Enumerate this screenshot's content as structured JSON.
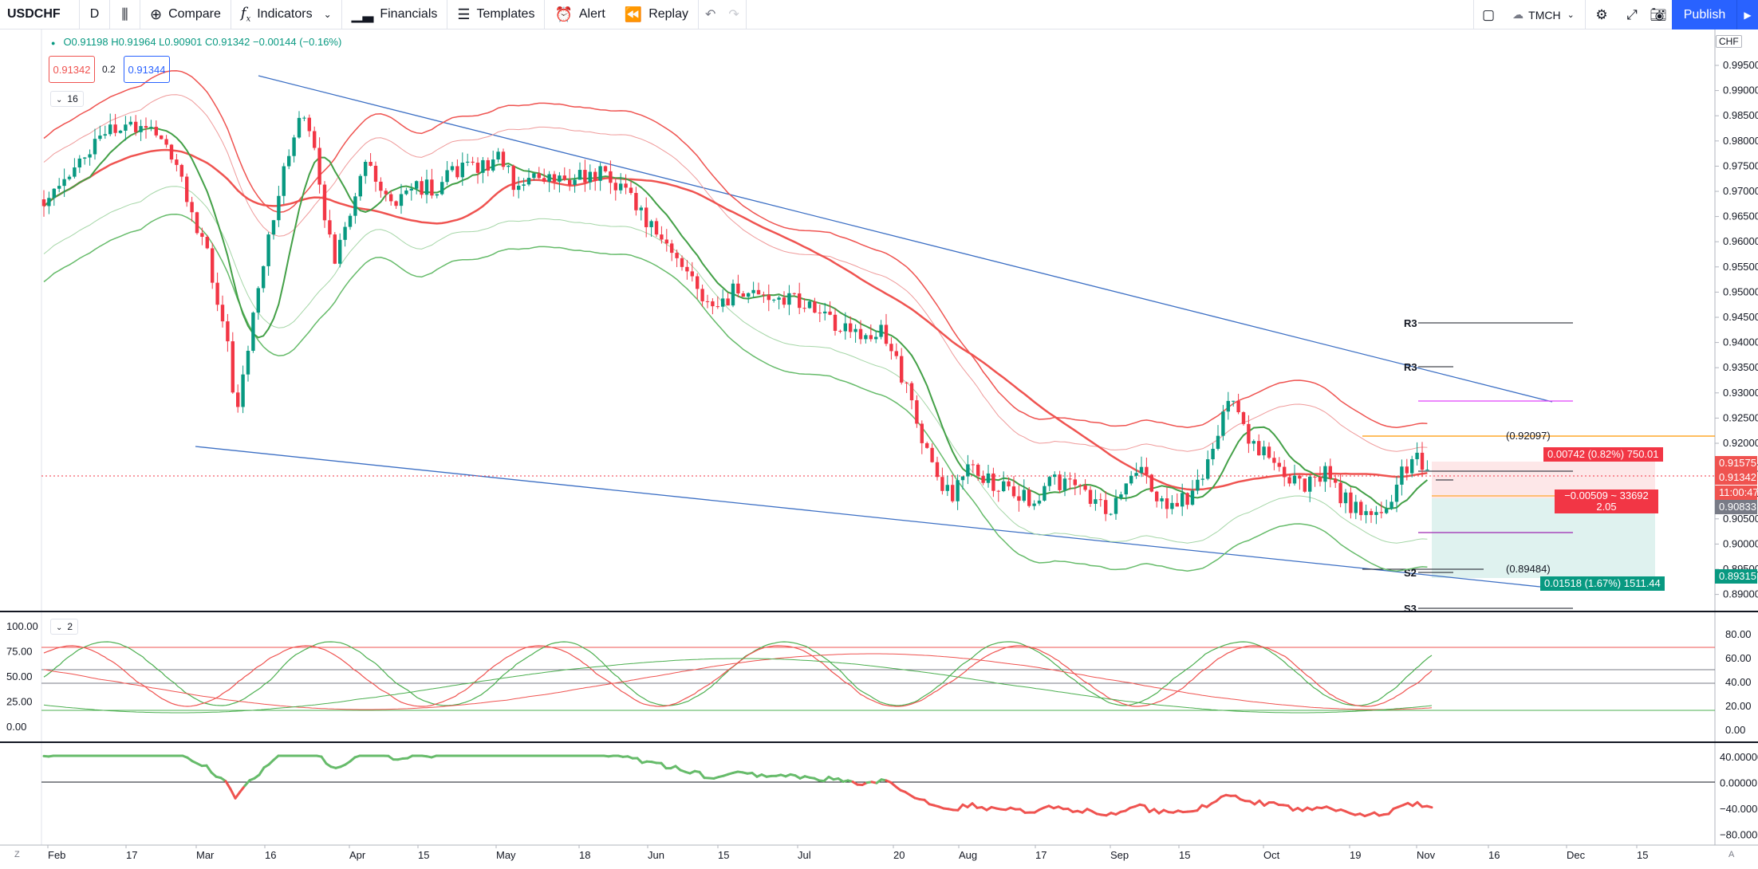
{
  "toolbar": {
    "symbol": "USDCHF",
    "interval": "D",
    "compare": "Compare",
    "indicators": "Indicators",
    "financials": "Financials",
    "templates": "Templates",
    "alert": "Alert",
    "replay": "Replay",
    "layout_name": "TMCH",
    "publish": "Publish"
  },
  "legend": {
    "ohlc": "O0.91198 H0.91964 L0.90901 C0.91342 −0.00144 (−0.16%)",
    "sell_price": "0.91342",
    "spread": "0.2",
    "buy_price": "0.91344",
    "indicator_count": "16",
    "stoch_count": "2"
  },
  "price_scale": {
    "currency": "CHF",
    "ticks": [
      "0.99500",
      "0.99000",
      "0.98500",
      "0.98000",
      "0.97500",
      "0.97000",
      "0.96500",
      "0.96000",
      "0.95500",
      "0.95000",
      "0.94500",
      "0.94000",
      "0.93500",
      "0.93000",
      "0.92500",
      "0.92000",
      "0.91500",
      "0.91000",
      "0.90500",
      "0.90000",
      "0.89500",
      "0.89000"
    ],
    "tags": [
      {
        "text": "0.91575",
        "color": "#ef5350"
      },
      {
        "text": "0.91342",
        "color": "#ef5350"
      },
      {
        "text": "11:00:47",
        "color": "#ef5350"
      },
      {
        "text": "0.90833",
        "color": "#787b86"
      },
      {
        "text": "0.89315",
        "color": "#089981"
      }
    ]
  },
  "stoch_scale": {
    "ticks": [
      "80.00",
      "60.00",
      "40.00",
      "20.00",
      "0.00"
    ]
  },
  "stoch_left_ticks": [
    "100.00",
    "75.00",
    "50.00",
    "25.00",
    "0.00"
  ],
  "osc_scale": {
    "ticks": [
      "40.00000",
      "0.00000",
      "−40.00000",
      "−80.00000"
    ]
  },
  "time_scale": {
    "ticks": [
      "Feb",
      "17",
      "Mar",
      "16",
      "Apr",
      "15",
      "May",
      "18",
      "Jun",
      "15",
      "Jul",
      "20",
      "Aug",
      "17",
      "Sep",
      "15",
      "Oct",
      "19",
      "Nov",
      "16",
      "Dec",
      "15"
    ]
  },
  "pivots": {
    "r3": "R3",
    "r3b": "R3",
    "s2": "S2",
    "s3": "S3",
    "level_high": "(0.92097)",
    "level_low": "(0.89484)"
  },
  "position": {
    "loss_label": "0.00742 (0.82%) 750.01",
    "profit_label": "0.01518 (1.67%) 1511.44",
    "current_label": "−0.00509 ~ 33692",
    "current_sub": "2.05"
  },
  "corner": {
    "left": "Z",
    "right": "A"
  },
  "colors": {
    "up": "#089981",
    "down": "#f23645",
    "sma": "#ef5350",
    "ema": "#4caf50",
    "trend": "#3c6fc4",
    "accent": "#2962ff"
  },
  "chart_data": {
    "type": "candlestick",
    "symbol": "USDCHF",
    "interval": "D",
    "ylim": [
      0.887,
      0.998
    ],
    "last_close": 0.91342,
    "ohlc_last": {
      "open": 0.91198,
      "high": 0.91964,
      "low": 0.90901,
      "close": 0.91342
    }
  }
}
